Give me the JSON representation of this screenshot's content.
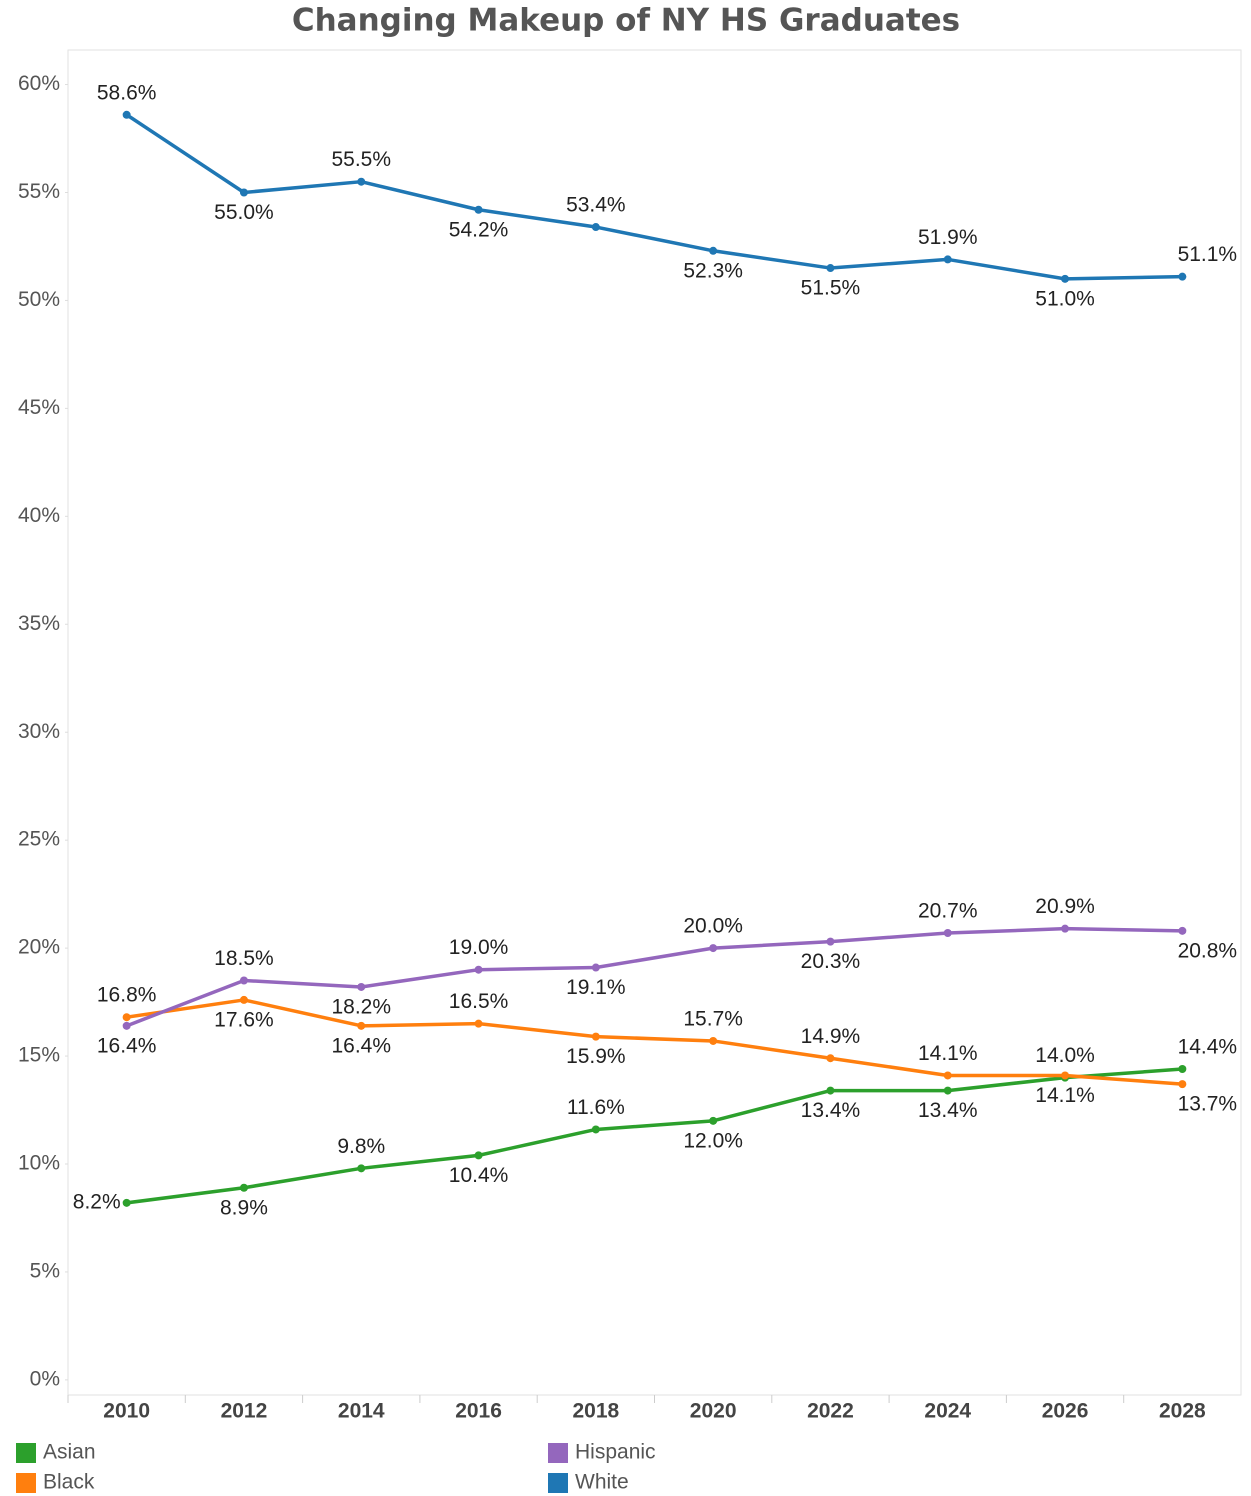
{
  "chart_data": {
    "type": "line",
    "title": "Changing Makeup of NY HS Graduates",
    "categories": [
      "2010",
      "2012",
      "2014",
      "2016",
      "2018",
      "2020",
      "2022",
      "2024",
      "2026",
      "2028"
    ],
    "series": [
      {
        "name": "Asian",
        "color": "#2ca02c",
        "values": [
          8.2,
          8.9,
          9.8,
          10.4,
          11.6,
          12.0,
          13.4,
          13.4,
          14.0,
          14.4
        ],
        "value_labels": [
          "8.2%",
          "8.9%",
          "9.8%",
          "10.4%",
          "11.6%",
          "12.0%",
          "13.4%",
          "13.4%",
          "14.0%",
          "14.4%"
        ]
      },
      {
        "name": "Black",
        "color": "#ff7f0e",
        "values": [
          16.8,
          17.6,
          16.4,
          16.5,
          15.9,
          15.7,
          14.9,
          14.1,
          14.1,
          13.7
        ],
        "value_labels": [
          "16.8%",
          "17.6%",
          "16.4%",
          "16.5%",
          "15.9%",
          "15.7%",
          "14.9%",
          "14.1%",
          "14.1%",
          "13.7%"
        ]
      },
      {
        "name": "Hispanic",
        "color": "#9467bd",
        "values": [
          16.4,
          18.5,
          18.2,
          19.0,
          19.1,
          20.0,
          20.3,
          20.7,
          20.9,
          20.8
        ],
        "value_labels": [
          "16.4%",
          "18.5%",
          "18.2%",
          "19.0%",
          "19.1%",
          "20.0%",
          "20.3%",
          "20.7%",
          "20.9%",
          "20.8%"
        ]
      },
      {
        "name": "White",
        "color": "#1f77b4",
        "values": [
          58.6,
          55.0,
          55.5,
          54.2,
          53.4,
          52.3,
          51.5,
          51.9,
          51.0,
          51.1
        ],
        "value_labels": [
          "58.6%",
          "55.0%",
          "55.5%",
          "54.2%",
          "53.4%",
          "52.3%",
          "51.5%",
          "51.9%",
          "51.0%",
          "51.1%"
        ]
      }
    ],
    "ylim": [
      -0.7,
      61.6
    ],
    "yticks": [
      {
        "value": 0,
        "label": "0%"
      },
      {
        "value": 5,
        "label": "5%"
      },
      {
        "value": 10,
        "label": "10%"
      },
      {
        "value": 15,
        "label": "15%"
      },
      {
        "value": 20,
        "label": "20%"
      },
      {
        "value": 25,
        "label": "25%"
      },
      {
        "value": 30,
        "label": "30%"
      },
      {
        "value": 35,
        "label": "35%"
      },
      {
        "value": 40,
        "label": "40%"
      },
      {
        "value": 45,
        "label": "45%"
      },
      {
        "value": 50,
        "label": "50%"
      },
      {
        "value": 55,
        "label": "55%"
      },
      {
        "value": 60,
        "label": "60%"
      }
    ],
    "grid": false
  }
}
